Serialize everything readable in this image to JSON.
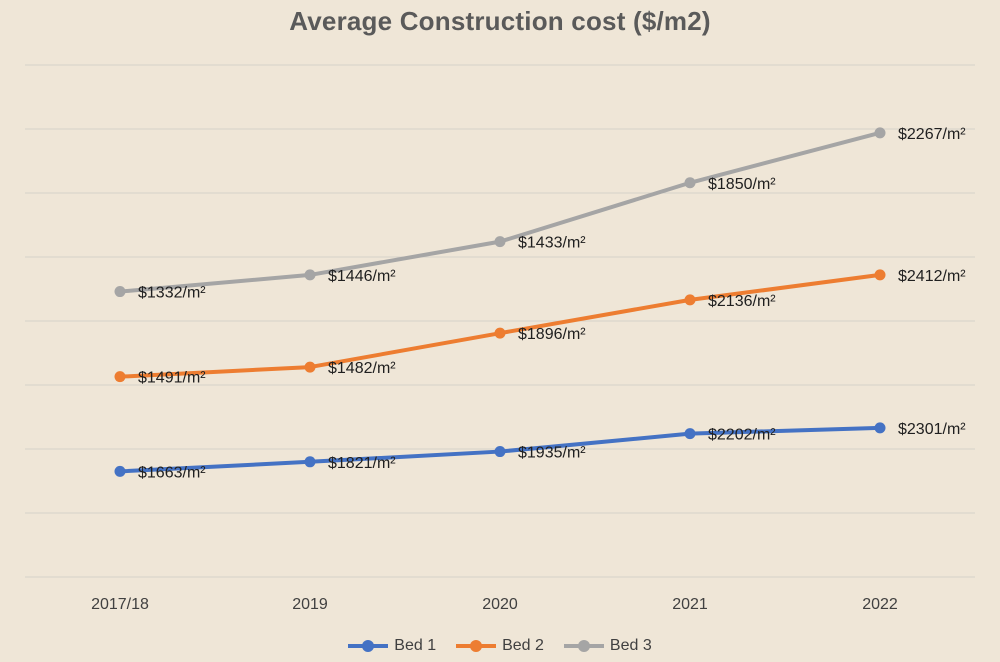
{
  "chart_data": {
    "type": "line",
    "title": "Average Construction cost ($/m2)",
    "categories": [
      "2017/18",
      "2019",
      "2020",
      "2021",
      "2022"
    ],
    "series": [
      {
        "name": "Bed 1",
        "color": "#4472c4",
        "values": [
          1663,
          1821,
          1935,
          2202,
          2301
        ],
        "labels": [
          "$1663/m²",
          "$1821/m²",
          "$1935/m²",
          "$2202/m²",
          "$2301/m²"
        ],
        "plot_level": [
          1.65,
          1.8,
          1.96,
          2.24,
          2.33
        ]
      },
      {
        "name": "Bed 2",
        "color": "#ed7d31",
        "values": [
          1491,
          1482,
          1896,
          2136,
          2412
        ],
        "labels": [
          "$1491/m²",
          "$1482/m²",
          "$1896/m²",
          "$2136/m²",
          "$2412/m²"
        ],
        "plot_level": [
          3.13,
          3.28,
          3.81,
          4.33,
          4.72
        ]
      },
      {
        "name": "Bed 3",
        "color": "#a5a5a5",
        "values": [
          1332,
          1446,
          1433,
          1850,
          2267
        ],
        "labels": [
          "$1332/m²",
          "$1446/m²",
          "$1433/m²",
          "$1850/m²",
          "$2267/m²"
        ],
        "plot_level": [
          4.46,
          4.72,
          5.24,
          6.16,
          6.94
        ]
      }
    ],
    "ylim": [
      0,
      8
    ],
    "gridlines": 8,
    "grid": true,
    "legend": "bottom",
    "xlabel": "",
    "ylabel": ""
  }
}
